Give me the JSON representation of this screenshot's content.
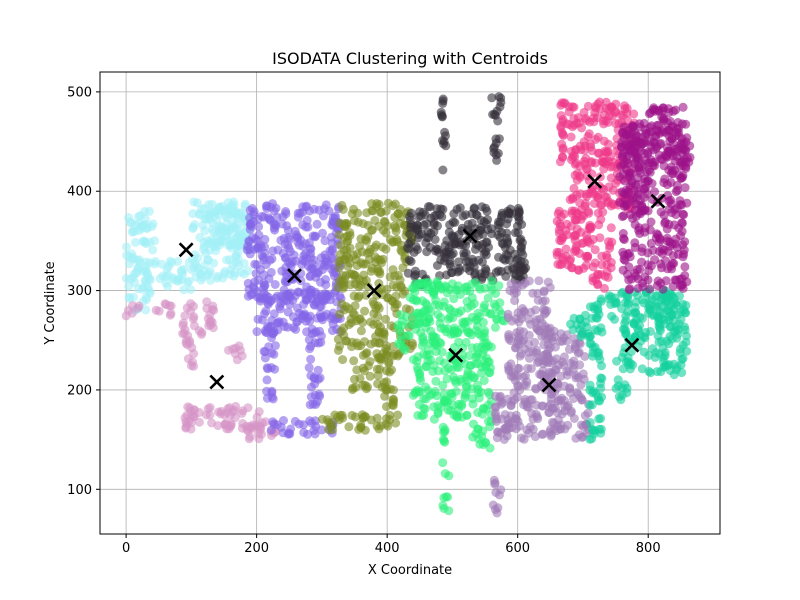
{
  "chart_data": {
    "type": "scatter",
    "title": "ISODATA Clustering with Centroids",
    "xlabel": "X Coordinate",
    "ylabel": "Y Coordinate",
    "xlim": [
      -40,
      910
    ],
    "ylim": [
      55,
      520
    ],
    "xticks": [
      0,
      200,
      400,
      600,
      800
    ],
    "yticks": [
      100,
      200,
      300,
      400,
      500
    ],
    "grid": true,
    "point_alpha": 0.6,
    "clusters": [
      {
        "color": "#a3f0f7",
        "centroid": [
          92,
          341
        ],
        "regions": [
          [
            0,
            45,
            280,
            380
          ],
          [
            50,
            100,
            300,
            330
          ],
          [
            100,
            190,
            310,
            390
          ],
          [
            120,
            190,
            345,
            385
          ]
        ]
      },
      {
        "color": "#d594c7",
        "centroid": [
          139,
          208
        ],
        "regions": [
          [
            0,
            20,
            270,
            285
          ],
          [
            40,
            70,
            275,
            290
          ],
          [
            85,
            105,
            220,
            290
          ],
          [
            110,
            135,
            255,
            290
          ],
          [
            90,
            220,
            160,
            185
          ],
          [
            180,
            230,
            150,
            170
          ],
          [
            150,
            180,
            230,
            245
          ]
        ]
      },
      {
        "color": "#8465e8",
        "centroid": [
          258,
          315
        ],
        "regions": [
          [
            185,
            330,
            290,
            388
          ],
          [
            200,
            330,
            258,
            300
          ],
          [
            210,
            230,
            190,
            260
          ],
          [
            280,
            300,
            185,
            260
          ],
          [
            210,
            320,
            155,
            170
          ]
        ]
      },
      {
        "color": "#7b8c21",
        "centroid": [
          380,
          300
        ],
        "regions": [
          [
            325,
            440,
            230,
            388
          ],
          [
            345,
            375,
            200,
            230
          ],
          [
            380,
            400,
            200,
            260
          ],
          [
            300,
            420,
            158,
            175
          ],
          [
            395,
            410,
            170,
            230
          ]
        ]
      },
      {
        "color": "#35303b",
        "centroid": [
          527,
          355
        ],
        "regions": [
          [
            430,
            610,
            310,
            385
          ],
          [
            440,
            460,
            305,
            320
          ],
          [
            600,
            615,
            320,
            350
          ],
          [
            480,
            490,
            420,
            495
          ],
          [
            560,
            575,
            430,
            500
          ]
        ]
      },
      {
        "color": "#2cf07c",
        "centroid": [
          505,
          235
        ],
        "regions": [
          [
            435,
            580,
            260,
            310
          ],
          [
            440,
            560,
            170,
            260
          ],
          [
            485,
            495,
            75,
            165
          ],
          [
            530,
            560,
            140,
            170
          ],
          [
            415,
            435,
            240,
            280
          ]
        ]
      },
      {
        "color": "#a07cb8",
        "centroid": [
          648,
          205
        ],
        "regions": [
          [
            565,
            710,
            150,
            200
          ],
          [
            585,
            650,
            200,
            310
          ],
          [
            640,
            705,
            200,
            260
          ],
          [
            560,
            575,
            75,
            110
          ]
        ]
      },
      {
        "color": "#13d19c",
        "centroid": [
          775,
          245
        ],
        "regions": [
          [
            710,
            845,
            270,
            300
          ],
          [
            710,
            730,
            150,
            270
          ],
          [
            760,
            800,
            220,
            270
          ],
          [
            750,
            770,
            190,
            230
          ],
          [
            800,
            860,
            215,
            300
          ],
          [
            680,
            710,
            250,
            280
          ]
        ]
      },
      {
        "color": "#ee3889",
        "centroid": [
          718,
          410
        ],
        "regions": [
          [
            665,
            780,
            425,
            490
          ],
          [
            680,
            775,
            380,
            430
          ],
          [
            660,
            745,
            320,
            380
          ],
          [
            715,
            740,
            300,
            330
          ]
        ]
      },
      {
        "color": "#9c1388",
        "centroid": [
          815,
          390
        ],
        "regions": [
          [
            760,
            860,
            300,
            470
          ],
          [
            800,
            865,
            420,
            485
          ],
          [
            755,
            800,
            380,
            460
          ]
        ]
      }
    ]
  }
}
